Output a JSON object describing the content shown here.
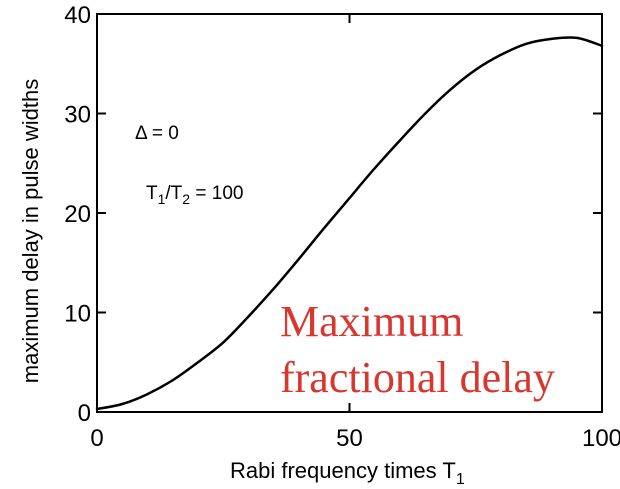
{
  "chart_data": {
    "type": "line",
    "title": "",
    "xlabel": "Rabi frequency times T",
    "xlabel_subscript": "1",
    "ylabel": "maximum delay in pulse widths",
    "xlim": [
      0,
      100
    ],
    "ylim": [
      0,
      40
    ],
    "xticks": [
      0,
      50,
      100
    ],
    "yticks": [
      0,
      10,
      20,
      30,
      40
    ],
    "grid": false,
    "series": [
      {
        "color": "#000000",
        "x": [
          0,
          5,
          10,
          15,
          20,
          25,
          30,
          35,
          40,
          45,
          50,
          55,
          60,
          65,
          70,
          75,
          80,
          85,
          90,
          95,
          100
        ],
        "y": [
          0.3,
          0.8,
          1.8,
          3.2,
          5.0,
          7.0,
          9.6,
          12.4,
          15.4,
          18.5,
          21.5,
          24.5,
          27.3,
          30.0,
          32.4,
          34.4,
          35.9,
          37.0,
          37.5,
          37.6,
          36.8
        ]
      }
    ],
    "annotations": {
      "delta": "Δ = 0",
      "t_ratio_base1": "T",
      "t_ratio_sub1": "1",
      "t_ratio_mid": "/T",
      "t_ratio_sub2": "2",
      "t_ratio_value": " = 100"
    },
    "overlay_text": [
      "Maximum",
      "fractional delay"
    ],
    "overlay_color": "#d8362e"
  }
}
